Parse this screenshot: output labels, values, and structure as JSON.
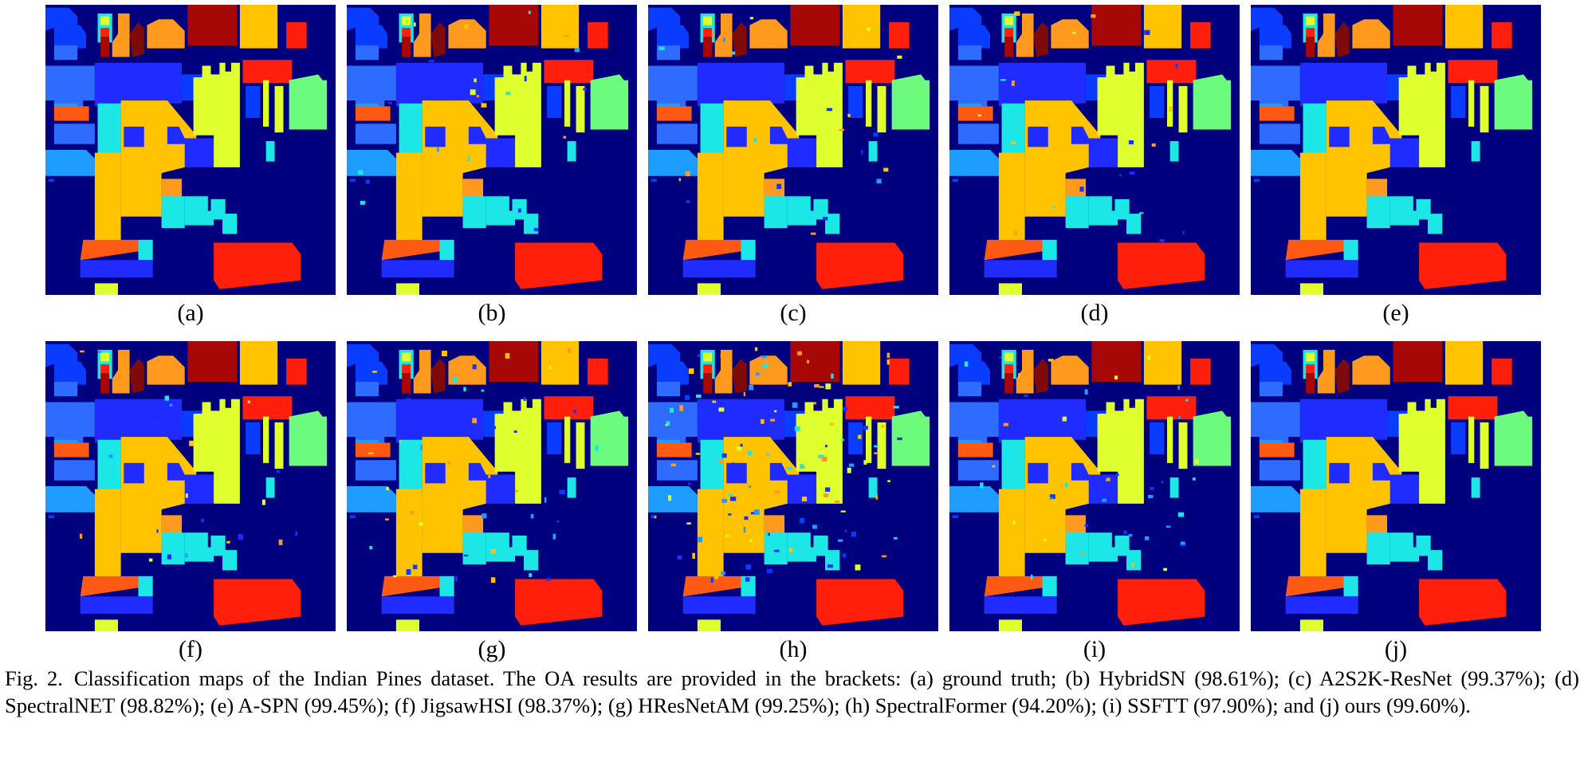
{
  "figure": {
    "panels": [
      {
        "label": "(a)",
        "noise": 0
      },
      {
        "label": "(b)",
        "noise": 1
      },
      {
        "label": "(c)",
        "noise": 1
      },
      {
        "label": "(d)",
        "noise": 1
      },
      {
        "label": "(e)",
        "noise": 0
      },
      {
        "label": "(f)",
        "noise": 1
      },
      {
        "label": "(g)",
        "noise": 2
      },
      {
        "label": "(h)",
        "noise": 5
      },
      {
        "label": "(i)",
        "noise": 2
      },
      {
        "label": "(j)",
        "noise": 0
      }
    ],
    "caption_number": "Fig. 2.",
    "caption_text": "Classification maps of the Indian Pines dataset. The OA results are provided in the brackets: (a) ground truth; (b) HybridSN (98.61%); (c) A2S2K-ResNet (99.37%); (d) SpectralNET (98.82%); (e) A-SPN (99.45%); (f) JigsawHSI (98.37%); (g) HResNetAM (99.25%); (h) SpectralFormer (94.20%); (i) SSFTT (97.90%); and (j) ours (99.60%)."
  },
  "colors": {
    "background": "#00007f",
    "blue_bright": "#1f2bff",
    "blue_mid": "#0a3cff",
    "blue_light": "#2e6bff",
    "sky": "#1f9cff",
    "cyan": "#1de6e6",
    "green": "#6dfb7d",
    "yellow": "#e0ff2f",
    "yellow2": "#ffe81a",
    "gold": "#ffc300",
    "orange": "#ff9a1f",
    "orange_red": "#ff5a14",
    "red": "#ff1f0a",
    "dark_red": "#a60808",
    "maroon": "#7f0a0a"
  }
}
